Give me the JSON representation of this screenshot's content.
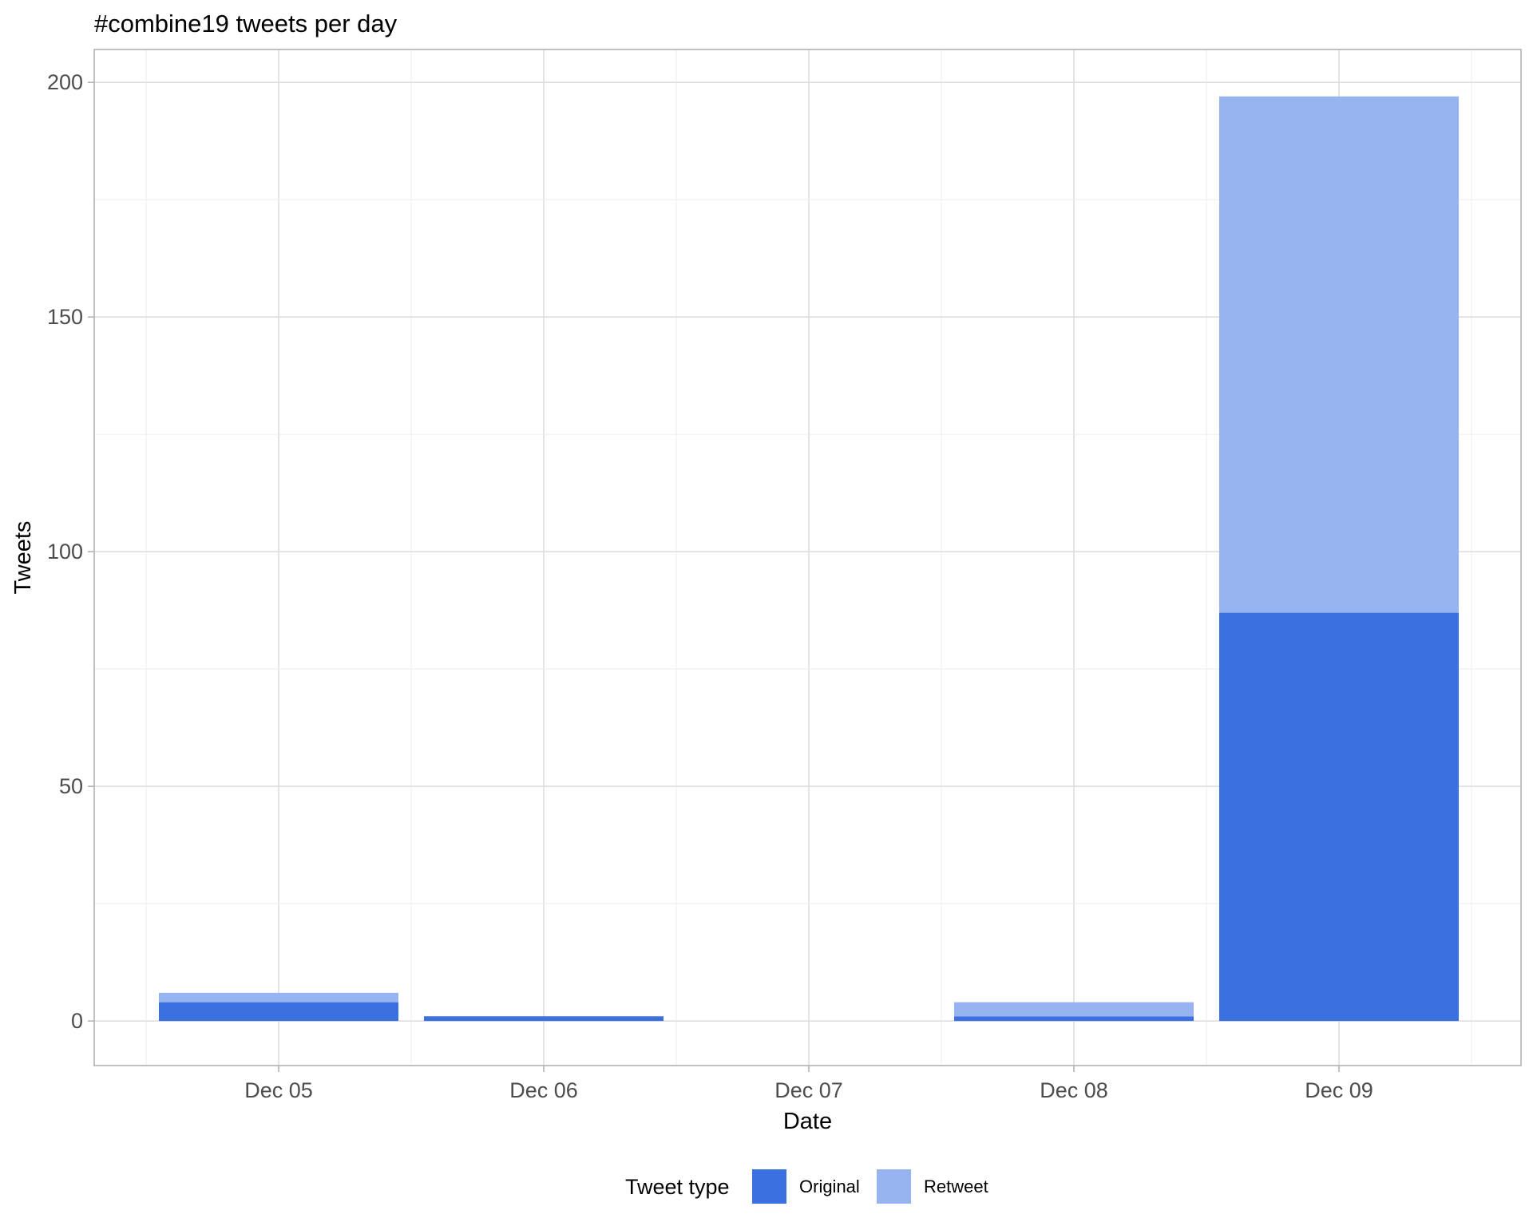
{
  "chart_data": {
    "type": "bar",
    "stacked": true,
    "title": "#combine19 tweets per day",
    "xlabel": "Date",
    "ylabel": "Tweets",
    "categories": [
      "Dec 05",
      "Dec 06",
      "Dec 07",
      "Dec 08",
      "Dec 09"
    ],
    "series": [
      {
        "name": "Original",
        "color": "#3b70e0",
        "values": [
          4,
          1,
          0,
          1,
          87
        ]
      },
      {
        "name": "Retweet",
        "color": "#97b4f0",
        "values": [
          2,
          0,
          0,
          3,
          110
        ]
      }
    ],
    "ylim": [
      -9.5,
      207
    ],
    "yticks": [
      0,
      50,
      100,
      150,
      200
    ],
    "grid": true,
    "legend": {
      "title": "Tweet type",
      "position": "bottom"
    }
  }
}
